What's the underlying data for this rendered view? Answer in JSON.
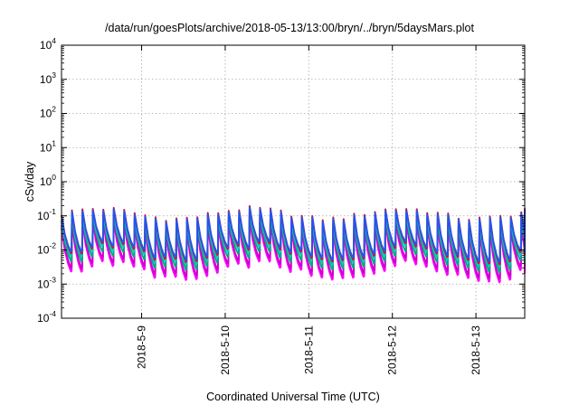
{
  "chart_data": {
    "type": "line",
    "title": "/data/run/goesPlots/archive/2018-05-13/13:00/bryn/../bryn/5daysMars.plot",
    "xlabel": "Coordinated Universal Time (UTC)",
    "ylabel": "cSv/day",
    "y_scale": "log",
    "ylim": [
      0.0001,
      10000
    ],
    "y_ticks": [
      {
        "value": 0.0001,
        "base": "10",
        "exp": "-4"
      },
      {
        "value": 0.001,
        "base": "10",
        "exp": "-3"
      },
      {
        "value": 0.01,
        "base": "10",
        "exp": "-2"
      },
      {
        "value": 0.1,
        "base": "10",
        "exp": "-1"
      },
      {
        "value": 1,
        "base": "10",
        "exp": "0"
      },
      {
        "value": 10,
        "base": "10",
        "exp": "1"
      },
      {
        "value": 100,
        "base": "10",
        "exp": "2"
      },
      {
        "value": 1000,
        "base": "10",
        "exp": "3"
      },
      {
        "value": 10000,
        "base": "10",
        "exp": "4"
      }
    ],
    "xlim": [
      "2018-05-08 01:00",
      "2018-05-13 14:00"
    ],
    "x_ticks": [
      "2018-5-9",
      "2018-5-10",
      "2018-5-11",
      "2018-5-12",
      "2018-5-13"
    ],
    "grid": true,
    "pattern": {
      "cycle_hours": 3,
      "peak_range": [
        0.05,
        0.18
      ],
      "trough_range": [
        0.003,
        0.02
      ]
    },
    "series": [
      {
        "color": "#ff00ff",
        "peak_factor": 0.45,
        "trough_factor": 0.25
      },
      {
        "color": "#cc00cc",
        "peak_factor": 0.55,
        "trough_factor": 0.32
      },
      {
        "color": "#00aa88",
        "peak_factor": 0.7,
        "trough_factor": 0.5
      },
      {
        "color": "#00c8c8",
        "peak_factor": 0.8,
        "trough_factor": 0.7
      },
      {
        "color": "#ff0000",
        "peak_factor": 1.08,
        "trough_factor": 0.85
      },
      {
        "color": "#2255ee",
        "peak_factor": 1.0,
        "trough_factor": 0.95
      }
    ]
  }
}
